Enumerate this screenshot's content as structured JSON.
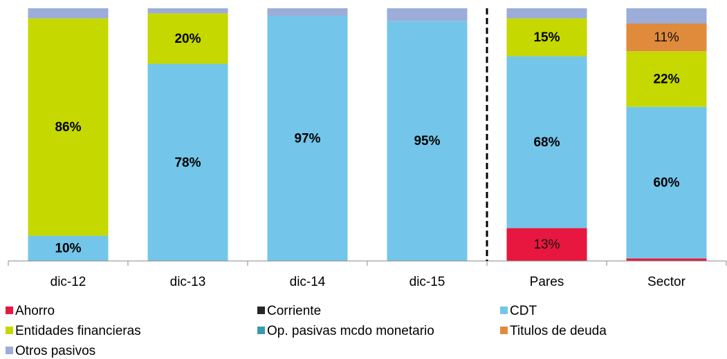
{
  "chart_data": {
    "type": "stacked_bar",
    "categories": [
      "dic-12",
      "dic-13",
      "dic-14",
      "dic-15",
      "Pares",
      "Sector"
    ],
    "ylim": [
      0,
      100
    ],
    "series": [
      {
        "name": "Ahorro",
        "color": "#e8173f",
        "values": [
          0,
          0,
          0,
          0,
          13,
          1
        ],
        "value_labels": [
          null,
          null,
          null,
          null,
          "13%",
          null
        ]
      },
      {
        "name": "Corriente",
        "color": "#262626",
        "values": [
          0,
          0,
          0,
          0,
          0,
          0
        ]
      },
      {
        "name": "CDT",
        "color": "#73c6ea",
        "values": [
          10,
          78,
          97,
          95,
          68,
          60
        ],
        "value_labels": [
          "10%",
          "78%",
          "97%",
          "95%",
          "68%",
          "60%"
        ]
      },
      {
        "name": "Entidades financieras",
        "color": "#c5d800",
        "values": [
          86,
          20,
          0,
          0,
          15,
          22
        ],
        "value_labels": [
          "86%",
          "20%",
          null,
          null,
          "15%",
          "22%"
        ]
      },
      {
        "name": "Op. pasivas mcdo monetario",
        "color": "#3a9aad",
        "values": [
          0,
          0,
          0,
          0,
          0,
          0
        ]
      },
      {
        "name": "Titulos de deuda",
        "color": "#e08a3c",
        "values": [
          0,
          0,
          0,
          0,
          0,
          11
        ],
        "value_labels": [
          null,
          null,
          null,
          null,
          null,
          "11%"
        ]
      },
      {
        "name": "Otros pasivos",
        "color": "#9badd8",
        "values": [
          4,
          2,
          3,
          5,
          4,
          6
        ]
      }
    ]
  }
}
